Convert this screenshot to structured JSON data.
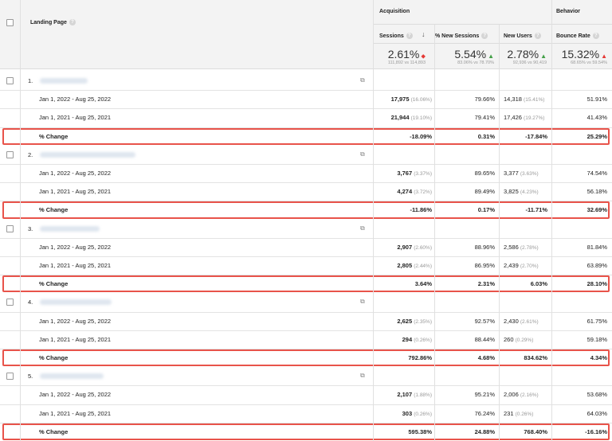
{
  "header": {
    "landing_page": "Landing Page",
    "acquisition": "Acquisition",
    "behavior": "Behavior",
    "columns": {
      "sessions": "Sessions",
      "new_sessions": "% New Sessions",
      "new_users": "New Users",
      "bounce_rate": "Bounce Rate"
    }
  },
  "summary": {
    "sessions": {
      "big": "2.61%",
      "small": "111,892 vs 114,893",
      "trend": "down-red"
    },
    "new_sessions": {
      "big": "5.54%",
      "small": "83.06% vs 78.70%",
      "trend": "up-green"
    },
    "new_users": {
      "big": "2.78%",
      "small": "92,936 vs 90,419",
      "trend": "up-green"
    },
    "bounce_rate": {
      "big": "15.32%",
      "small": "68.65% vs 59.54%",
      "trend": "up-red"
    }
  },
  "groups": [
    {
      "index": "1.",
      "rows": [
        {
          "label": "Jan 1, 2022 - Aug 25, 2022",
          "sessions": "17,975",
          "sessions_pct": "(16.06%)",
          "new_sessions": "79.66%",
          "new_users": "14,318",
          "new_users_pct": "(15.41%)",
          "bounce_rate": "51.91%"
        },
        {
          "label": "Jan 1, 2021 - Aug 25, 2021",
          "sessions": "21,944",
          "sessions_pct": "(19.10%)",
          "new_sessions": "79.41%",
          "new_users": "17,426",
          "new_users_pct": "(19.27%)",
          "bounce_rate": "41.43%"
        }
      ],
      "change": {
        "label": "% Change",
        "sessions": "-18.09%",
        "new_sessions": "0.31%",
        "new_users": "-17.84%",
        "bounce_rate": "25.29%"
      }
    },
    {
      "index": "2.",
      "rows": [
        {
          "label": "Jan 1, 2022 - Aug 25, 2022",
          "sessions": "3,767",
          "sessions_pct": "(3.37%)",
          "new_sessions": "89.65%",
          "new_users": "3,377",
          "new_users_pct": "(3.63%)",
          "bounce_rate": "74.54%"
        },
        {
          "label": "Jan 1, 2021 - Aug 25, 2021",
          "sessions": "4,274",
          "sessions_pct": "(3.72%)",
          "new_sessions": "89.49%",
          "new_users": "3,825",
          "new_users_pct": "(4.23%)",
          "bounce_rate": "56.18%"
        }
      ],
      "change": {
        "label": "% Change",
        "sessions": "-11.86%",
        "new_sessions": "0.17%",
        "new_users": "-11.71%",
        "bounce_rate": "32.69%"
      }
    },
    {
      "index": "3.",
      "rows": [
        {
          "label": "Jan 1, 2022 - Aug 25, 2022",
          "sessions": "2,907",
          "sessions_pct": "(2.60%)",
          "new_sessions": "88.96%",
          "new_users": "2,586",
          "new_users_pct": "(2.78%)",
          "bounce_rate": "81.84%"
        },
        {
          "label": "Jan 1, 2021 - Aug 25, 2021",
          "sessions": "2,805",
          "sessions_pct": "(2.44%)",
          "new_sessions": "86.95%",
          "new_users": "2,439",
          "new_users_pct": "(2.70%)",
          "bounce_rate": "63.89%"
        }
      ],
      "change": {
        "label": "% Change",
        "sessions": "3.64%",
        "new_sessions": "2.31%",
        "new_users": "6.03%",
        "bounce_rate": "28.10%"
      }
    },
    {
      "index": "4.",
      "rows": [
        {
          "label": "Jan 1, 2022 - Aug 25, 2022",
          "sessions": "2,625",
          "sessions_pct": "(2.35%)",
          "new_sessions": "92.57%",
          "new_users": "2,430",
          "new_users_pct": "(2.61%)",
          "bounce_rate": "61.75%"
        },
        {
          "label": "Jan 1, 2021 - Aug 25, 2021",
          "sessions": "294",
          "sessions_pct": "(0.26%)",
          "new_sessions": "88.44%",
          "new_users": "260",
          "new_users_pct": "(0.29%)",
          "bounce_rate": "59.18%"
        }
      ],
      "change": {
        "label": "% Change",
        "sessions": "792.86%",
        "new_sessions": "4.68%",
        "new_users": "834.62%",
        "bounce_rate": "4.34%"
      }
    },
    {
      "index": "5.",
      "rows": [
        {
          "label": "Jan 1, 2022 - Aug 25, 2022",
          "sessions": "2,107",
          "sessions_pct": "(1.88%)",
          "new_sessions": "95.21%",
          "new_users": "2,006",
          "new_users_pct": "(2.16%)",
          "bounce_rate": "53.68%"
        },
        {
          "label": "Jan 1, 2021 - Aug 25, 2021",
          "sessions": "303",
          "sessions_pct": "(0.26%)",
          "new_sessions": "76.24%",
          "new_users": "231",
          "new_users_pct": "(0.26%)",
          "bounce_rate": "64.03%"
        }
      ],
      "change": {
        "label": "% Change",
        "sessions": "595.38%",
        "new_sessions": "24.88%",
        "new_users": "768.40%",
        "bounce_rate": "-16.16%"
      }
    }
  ],
  "colors": {
    "highlight": "#e8534a",
    "trend_red": "#e53935",
    "trend_green": "#43a047"
  }
}
